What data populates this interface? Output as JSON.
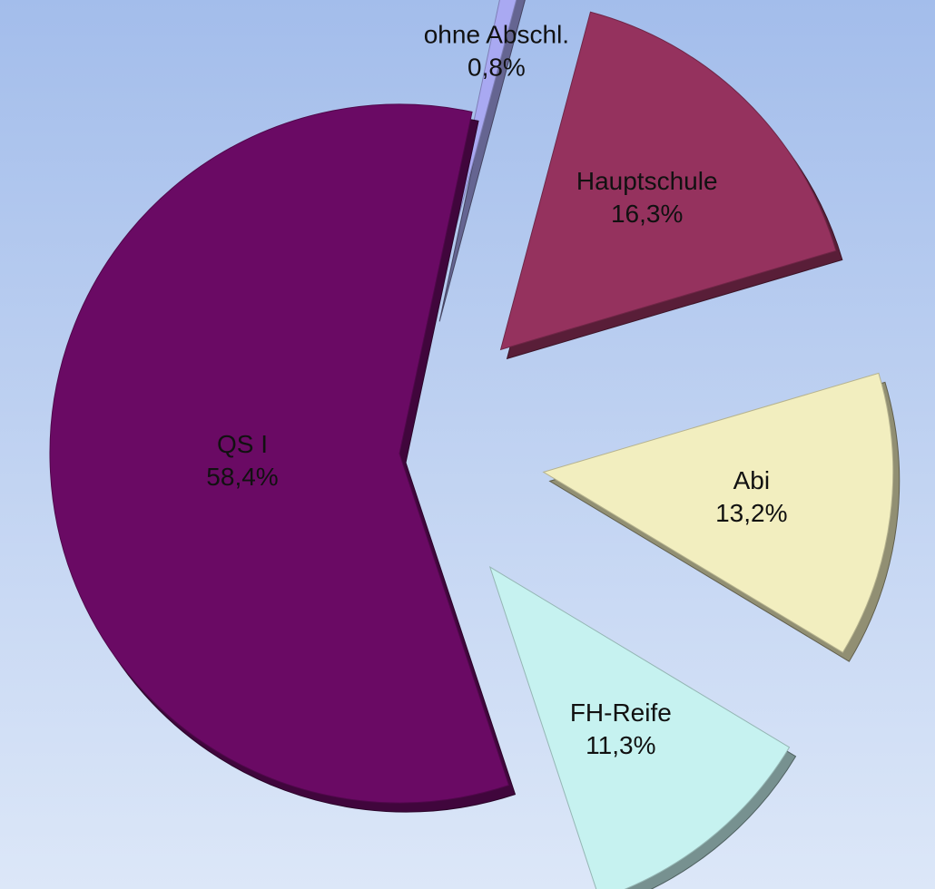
{
  "chart_data": {
    "type": "pie",
    "categories": [
      "ohne Abschl.",
      "Hauptschule",
      "Abi",
      "FH-Reife",
      "QS I"
    ],
    "values": [
      0.8,
      16.3,
      13.2,
      11.3,
      58.4
    ],
    "value_labels": [
      "0,8%",
      "16,3%",
      "13,2%",
      "11,3%",
      "58,4%"
    ],
    "colors": [
      "#a9a9f2",
      "#95325e",
      "#f2eebf",
      "#c6f2f0",
      "#6a0a64"
    ]
  }
}
